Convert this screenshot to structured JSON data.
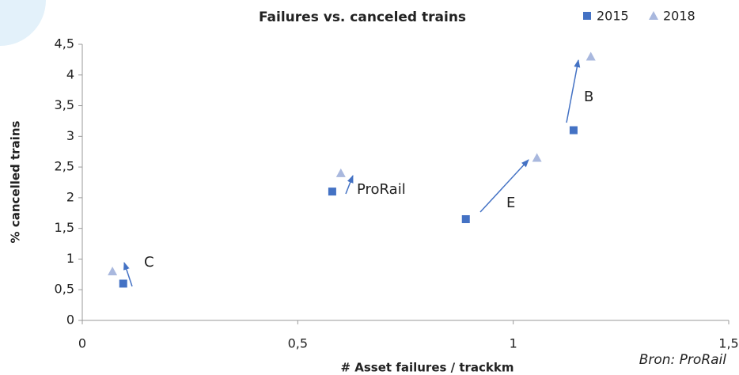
{
  "chart_data": {
    "type": "scatter",
    "title": "Failures vs. canceled trains",
    "xlabel": "# Asset failures / trackkm",
    "ylabel": "% cancelled trains",
    "source": "Bron: ProRail",
    "xlim": [
      0,
      1.5
    ],
    "xticks": [
      0,
      {
        "value": 0.5,
        "label": "0,5"
      },
      1,
      {
        "value": 1.5,
        "label": "1,5"
      }
    ],
    "ylim": [
      0,
      4.5
    ],
    "yticks": [
      0,
      {
        "value": 0.5,
        "label": "0,5"
      },
      1,
      {
        "value": 1.5,
        "label": "1,5"
      },
      2,
      {
        "value": 2.5,
        "label": "2,5"
      },
      3,
      {
        "value": 3.5,
        "label": "3,5"
      },
      4,
      {
        "value": 4.5,
        "label": "4,5"
      }
    ],
    "legend": "top-right",
    "series": [
      {
        "name": "2015",
        "color": "#4472c4",
        "marker": "square",
        "x": [
          0.095,
          0.58,
          0.89,
          1.14
        ],
        "values": [
          0.6,
          2.1,
          1.65,
          3.1
        ]
      },
      {
        "name": "2018",
        "color": "#a9b8de",
        "marker": "triangle",
        "x": [
          0.07,
          0.6,
          1.055,
          1.18
        ],
        "values": [
          0.8,
          2.4,
          2.65,
          4.3
        ]
      }
    ],
    "annotations": [
      "C",
      "ProRail",
      "E",
      "B"
    ]
  }
}
